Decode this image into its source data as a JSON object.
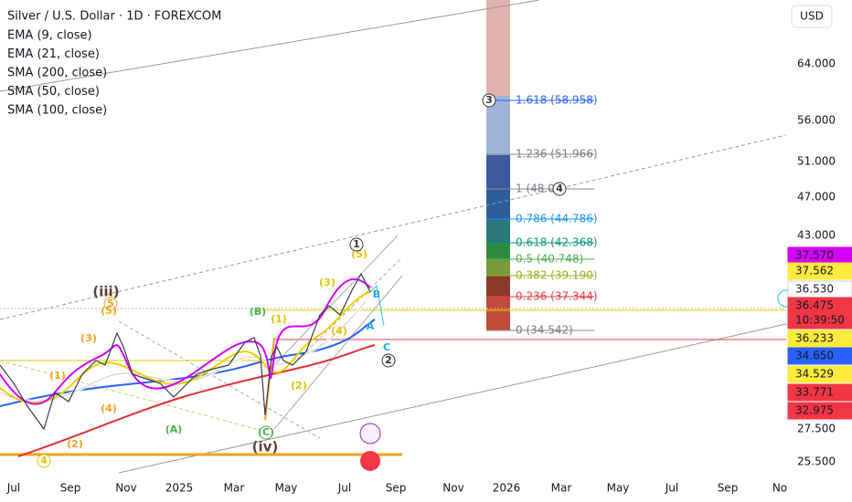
{
  "header": {
    "symbol": "Silver / U.S. Dollar · 1D · FOREXCOM"
  },
  "indicators": [
    "EMA (9, close)",
    "EMA (21, close)",
    "SMA (200, close)",
    "SMA (50, close)",
    "SMA (100, close)"
  ],
  "currency": "USD",
  "price_axis": [
    "64.000",
    "56.000",
    "51.000",
    "47.000",
    "43.000",
    "27.500",
    "25.500"
  ],
  "price_tags": [
    {
      "label": "37.570"
    },
    {
      "label": "37.562"
    },
    {
      "label": "36.530"
    },
    {
      "label": "36.475",
      "timer": "10:39:50"
    },
    {
      "label": "36.233"
    },
    {
      "label": "34.650"
    },
    {
      "label": "34.529"
    },
    {
      "label": "33.771"
    },
    {
      "label": "32.975"
    }
  ],
  "time_axis": [
    "Jul",
    "Sep",
    "Nov",
    "2025",
    "Mar",
    "May",
    "Jul",
    "Sep",
    "Nov",
    "2026",
    "Mar",
    "May",
    "Jul",
    "Sep",
    "No"
  ],
  "fib_levels": [
    "1.618 (58.958)",
    "1.236 (51.966)",
    "1 (48.00",
    "0.786 (44.786)",
    "0.618 (42.368)",
    "0.5 (40.748)",
    "0.382 (39.190)",
    "0.236 (37.344)",
    "0 (34.542)"
  ],
  "wave_labels": [
    "(iii)",
    "5",
    "(5)",
    "(3)",
    "(1)",
    "(4)",
    "(2)",
    "4",
    "(A)",
    "(B)",
    "(C)",
    "(iv)",
    "(1)",
    "(2)",
    "(3)",
    "(4)",
    "(5)",
    "1",
    "2",
    "3",
    "4",
    "A",
    "B",
    "C"
  ]
}
